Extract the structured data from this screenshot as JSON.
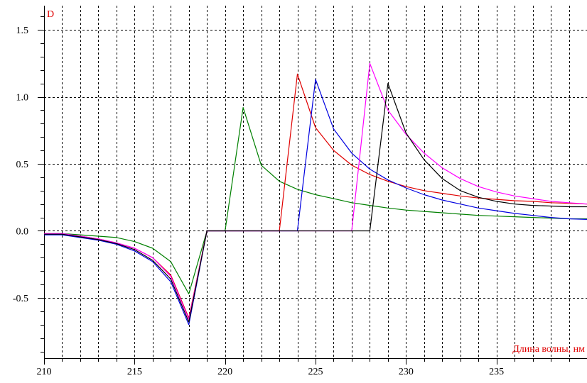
{
  "chart_data": {
    "type": "line",
    "ylabel": "D",
    "xlabel": "Длина волны, нм",
    "xlim": [
      210,
      240
    ],
    "ylim": [
      -0.95,
      1.68
    ],
    "x_ticks": [
      210,
      215,
      220,
      225,
      230,
      235
    ],
    "x_tick_labels": [
      "210",
      "215",
      "220",
      "225",
      "230",
      "235"
    ],
    "y_ticks": [
      1.5,
      1.0,
      0.5,
      0.0,
      -0.5
    ],
    "y_tick_labels": [
      "1.5",
      "1.0",
      "0.5",
      "0.0",
      "-0.5"
    ],
    "grid": true,
    "legend": "none",
    "series": [
      {
        "color": "#008000",
        "x": [
          210,
          211,
          212,
          213,
          214,
          215,
          216,
          217,
          218,
          219,
          220,
          221,
          222,
          223,
          224,
          225,
          226,
          227,
          228,
          229,
          230,
          231,
          232,
          233,
          234,
          235,
          236,
          237,
          238,
          239,
          240
        ],
        "y": [
          -0.02,
          -0.02,
          -0.03,
          -0.04,
          -0.05,
          -0.08,
          -0.13,
          -0.23,
          -0.47,
          0.0,
          0.0,
          0.92,
          0.49,
          0.37,
          0.31,
          0.27,
          0.24,
          0.21,
          0.19,
          0.17,
          0.155,
          0.145,
          0.135,
          0.125,
          0.115,
          0.11,
          0.105,
          0.1,
          0.095,
          0.09,
          0.09
        ]
      },
      {
        "color": "#e00000",
        "x": [
          210,
          211,
          212,
          213,
          214,
          215,
          216,
          217,
          218,
          219,
          220,
          221,
          222,
          223,
          224,
          225,
          226,
          227,
          228,
          229,
          230,
          231,
          232,
          233,
          234,
          235,
          236,
          237,
          238,
          239,
          240
        ],
        "y": [
          -0.02,
          -0.025,
          -0.04,
          -0.06,
          -0.09,
          -0.13,
          -0.2,
          -0.33,
          -0.65,
          0.0,
          0.0,
          0.0,
          0.0,
          0.0,
          1.17,
          0.77,
          0.6,
          0.49,
          0.42,
          0.37,
          0.33,
          0.3,
          0.28,
          0.26,
          0.245,
          0.235,
          0.225,
          0.22,
          0.21,
          0.205,
          0.2
        ]
      },
      {
        "color": "#0000e0",
        "x": [
          210,
          211,
          212,
          213,
          214,
          215,
          216,
          217,
          218,
          219,
          220,
          221,
          222,
          223,
          224,
          225,
          226,
          227,
          228,
          229,
          230,
          231,
          232,
          233,
          234,
          235,
          236,
          237,
          238,
          239,
          240
        ],
        "y": [
          -0.03,
          -0.03,
          -0.05,
          -0.07,
          -0.1,
          -0.15,
          -0.23,
          -0.38,
          -0.7,
          0.0,
          0.0,
          0.0,
          0.0,
          0.0,
          0.0,
          1.13,
          0.76,
          0.58,
          0.46,
          0.38,
          0.32,
          0.27,
          0.23,
          0.2,
          0.17,
          0.15,
          0.13,
          0.115,
          0.1,
          0.09,
          0.085
        ]
      },
      {
        "color": "#ff00ff",
        "x": [
          210,
          211,
          212,
          213,
          214,
          215,
          216,
          217,
          218,
          219,
          220,
          221,
          222,
          223,
          224,
          225,
          226,
          227,
          228,
          229,
          230,
          231,
          232,
          233,
          234,
          235,
          236,
          237,
          238,
          239,
          240
        ],
        "y": [
          -0.02,
          -0.02,
          -0.04,
          -0.06,
          -0.09,
          -0.13,
          -0.2,
          -0.34,
          -0.66,
          0.0,
          0.0,
          0.0,
          0.0,
          0.0,
          0.0,
          0.0,
          0.0,
          0.0,
          1.25,
          0.9,
          0.72,
          0.58,
          0.47,
          0.39,
          0.33,
          0.29,
          0.26,
          0.24,
          0.22,
          0.21,
          0.2
        ]
      },
      {
        "color": "#000000",
        "x": [
          210,
          211,
          212,
          213,
          214,
          215,
          216,
          217,
          218,
          219,
          220,
          221,
          222,
          223,
          224,
          225,
          226,
          227,
          228,
          229,
          230,
          231,
          232,
          233,
          234,
          235,
          236,
          237,
          238,
          239,
          240
        ],
        "y": [
          -0.025,
          -0.025,
          -0.045,
          -0.065,
          -0.095,
          -0.14,
          -0.22,
          -0.36,
          -0.68,
          0.0,
          0.0,
          0.0,
          0.0,
          0.0,
          0.0,
          0.0,
          0.0,
          0.0,
          0.0,
          1.1,
          0.73,
          0.53,
          0.39,
          0.3,
          0.25,
          0.22,
          0.2,
          0.19,
          0.185,
          0.18,
          0.18
        ]
      }
    ]
  }
}
